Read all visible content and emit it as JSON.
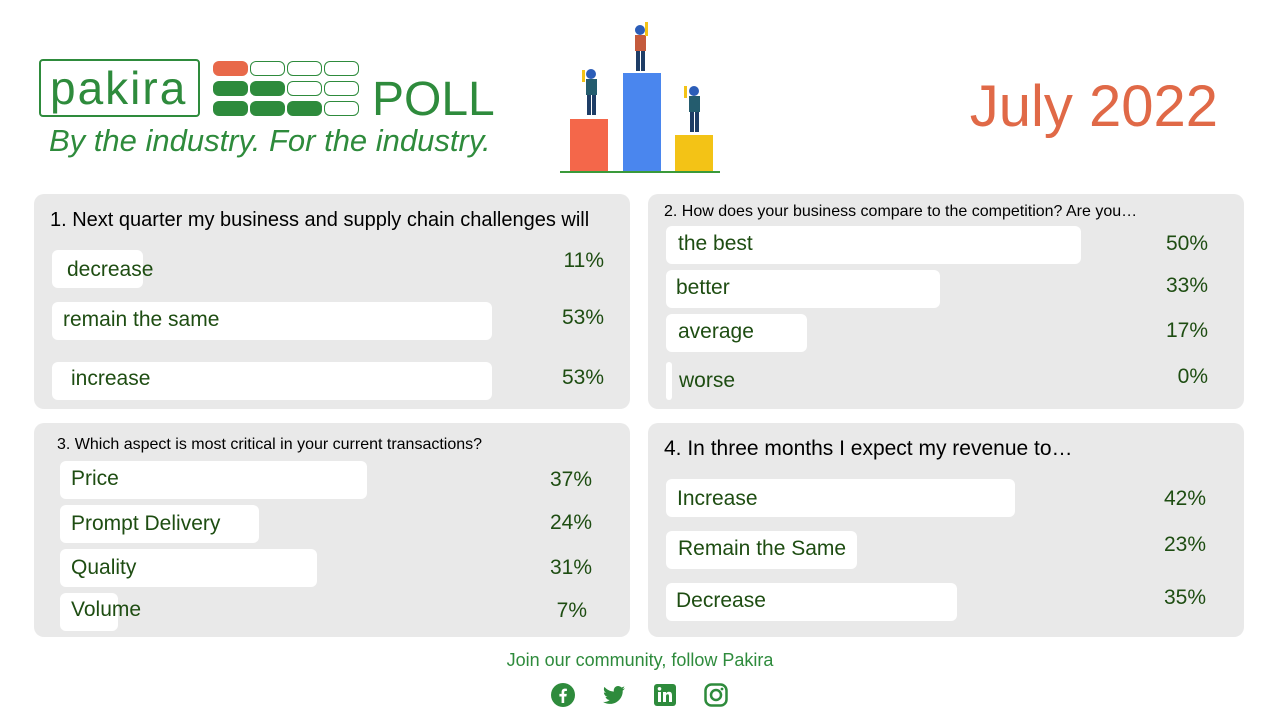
{
  "header": {
    "logo_text": "pakira",
    "poll_word": "POLL",
    "tagline": "By the industry. For the industry.",
    "date": "July 2022"
  },
  "colors": {
    "brand_green": "#2e8b3c",
    "text_green": "#1e4d12",
    "accent_orange": "#e06947",
    "card_bg": "#e9e9e9",
    "bar_fill": "#ffffff",
    "podium_red": "#f4674a",
    "podium_blue": "#4a86ee",
    "podium_yellow": "#f3c316"
  },
  "chart_data": [
    {
      "type": "bar",
      "title": "1. Next quarter my business and supply chain challenges will",
      "categories": [
        "decrease",
        "remain the same",
        "increase"
      ],
      "values": [
        11,
        53,
        53
      ],
      "labels": [
        "11%",
        "53%",
        "53%"
      ]
    },
    {
      "type": "bar",
      "title": "2. How does your business compare to the competition? Are you…",
      "categories": [
        "the best",
        "better",
        "average",
        "worse"
      ],
      "values": [
        50,
        33,
        17,
        0
      ],
      "labels": [
        "50%",
        "33%",
        "17%",
        "0%"
      ]
    },
    {
      "type": "bar",
      "title": "3. Which aspect is most critical in your current transactions?",
      "categories": [
        "Price",
        "Prompt Delivery",
        "Quality",
        "Volume"
      ],
      "values": [
        37,
        24,
        31,
        7
      ],
      "labels": [
        "37%",
        "24%",
        "31%",
        "7%"
      ]
    },
    {
      "type": "bar",
      "title": "4. In three months I expect my revenue to…",
      "categories": [
        "Increase",
        "Remain the Same",
        "Decrease"
      ],
      "values": [
        42,
        23,
        35
      ],
      "labels": [
        "42%",
        "23%",
        "35%"
      ]
    }
  ],
  "footer": {
    "follow_text": "Join our community, follow Pakira",
    "social": [
      "facebook-icon",
      "twitter-icon",
      "linkedin-icon",
      "instagram-icon"
    ]
  }
}
